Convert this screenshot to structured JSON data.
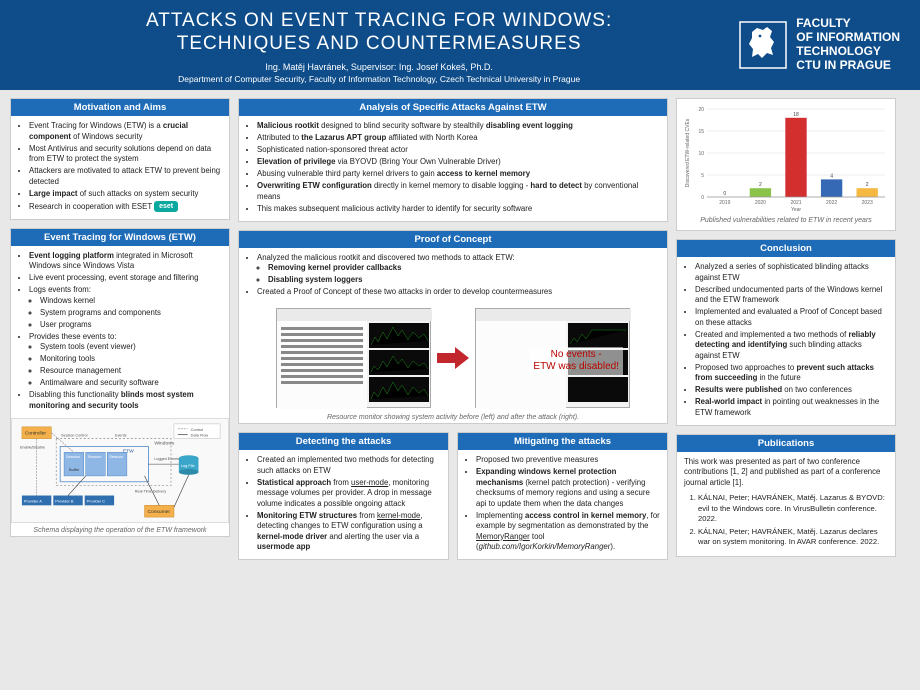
{
  "header": {
    "title_l1": "ATTACKS ON EVENT TRACING FOR WINDOWS:",
    "title_l2": "TECHNIQUES AND COUNTERMEASURES",
    "author": "Ing. Matěj Havránek, Supervisor: Ing. Josef Kokeš, Ph.D.",
    "dept": "Department of Computer Security, Faculty of Information Technology, Czech Technical University in Prague",
    "faculty_l1": "FACULTY",
    "faculty_l2": "OF INFORMATION",
    "faculty_l3": "TECHNOLOGY",
    "faculty_l4": "CTU IN PRAGUE"
  },
  "motivation": {
    "title": "Motivation and Aims",
    "eset": "eset"
  },
  "etw": {
    "title": "Event Tracing for Windows (ETW)",
    "caption": "Schema displaying the operation of the ETW framework",
    "diagram": {
      "controller": "Controller",
      "buffer": "Buffer",
      "session": "Session",
      "etw_label": "ETW",
      "windows": "Windows",
      "consumer": "Consumer",
      "providers": [
        "Provider A",
        "Provider B",
        "Provider C"
      ],
      "legend_control": "Control",
      "legend_data": "Data Flow",
      "enable": "Enable/Disable",
      "sessctl": "Session Control",
      "events": "Events",
      "logged": "Logged Events",
      "rt": "Real-Time Delivery",
      "logfile": "Log File",
      "colors": {
        "controller": "#f4b04a",
        "session": "#8fb7e6",
        "etw_border": "#4a86c5",
        "windows_border": "#888",
        "consumer": "#f4b04a",
        "provider": "#2f6fb0",
        "logfile": "#3aa6c9"
      }
    }
  },
  "analysis": {
    "title": "Analysis of Specific Attacks Against ETW"
  },
  "poc": {
    "title": "Proof of Concept",
    "overlay_l1": "No events -",
    "overlay_l2": "ETW was disabled!",
    "caption": "Resource monitor showing system activity before (left) and after the attack (right).",
    "arrow_color": "#c1272d"
  },
  "detect": {
    "title": "Detecting the attacks"
  },
  "mitigate": {
    "title": "Mitigating the attacks"
  },
  "chart": {
    "caption": "Published vulnerabilities related to ETW in recent years",
    "categories": [
      "2019",
      "2020",
      "2021",
      "2022",
      "2023"
    ],
    "values": [
      0,
      2,
      18,
      4,
      2
    ],
    "bar_colors": [
      "#c9c9c9",
      "#8bc34a",
      "#d32f2f",
      "#3568b5",
      "#f5b942"
    ],
    "ylim": [
      0,
      20
    ],
    "ytick_step": 5,
    "ylabel": "Discovered ETW-related CVEs",
    "xlabel": "Year",
    "background": "#ffffff",
    "grid_color": "#dddddd",
    "label_fontsize": 5
  },
  "conclusion": {
    "title": "Conclusion"
  },
  "publications": {
    "title": "Publications",
    "intro": "This work was presented as part of two conference contributions [1, 2] and published as part of a conference journal article [1].",
    "items": [
      "KÁLNAI, Peter; HAVRÁNEK, Matěj. Lazarus & BYOVD: evil to the Windows core. In VirusBulletin conference. 2022.",
      "KÁLNAI, Peter; HAVRÁNEK, Matěj. Lazarus declares war on system monitoring. In AVAR conference. 2022."
    ]
  }
}
